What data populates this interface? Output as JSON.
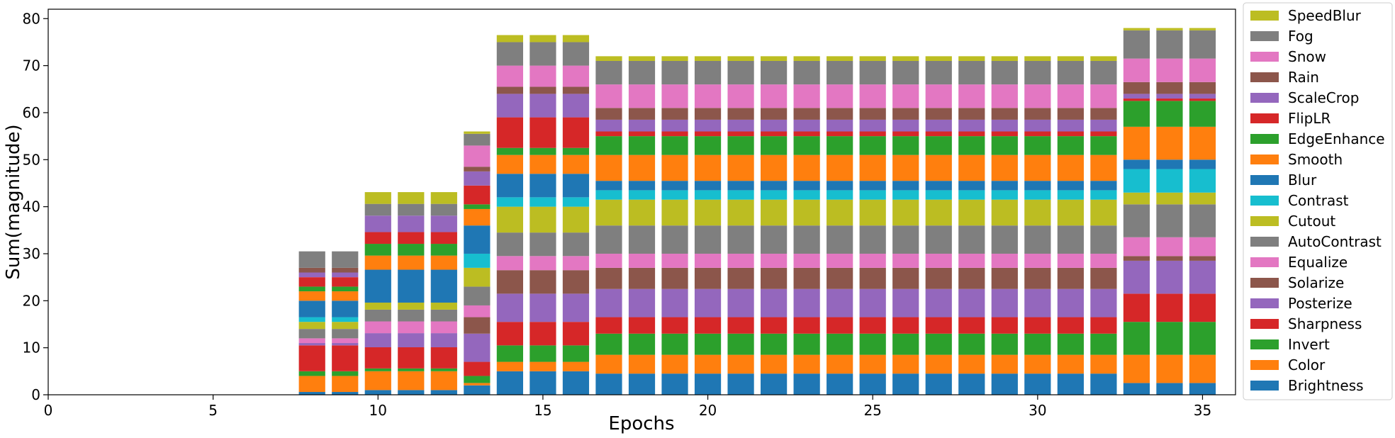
{
  "chart_data": {
    "type": "bar",
    "stacked": true,
    "title": "",
    "xlabel": "Epochs",
    "ylabel": "Sum(magnitude)",
    "xlim": [
      0,
      36
    ],
    "ylim": [
      0,
      82
    ],
    "x_ticks": [
      0,
      5,
      10,
      15,
      20,
      25,
      30,
      35
    ],
    "y_ticks": [
      0,
      10,
      20,
      30,
      40,
      50,
      60,
      70,
      80
    ],
    "grid": false,
    "legend_position": "right",
    "x": [
      8,
      9,
      10,
      11,
      12,
      13,
      14,
      15,
      16,
      17,
      18,
      19,
      20,
      21,
      22,
      23,
      24,
      25,
      26,
      27,
      28,
      29,
      30,
      31,
      32,
      33,
      34,
      35
    ],
    "series": [
      {
        "name": "Brightness",
        "color": "#1f77b4",
        "values": [
          0.6,
          0.6,
          1,
          1,
          1,
          2,
          5,
          5,
          5,
          4.5,
          4.5,
          4.5,
          4.5,
          4.5,
          4.5,
          4.5,
          4.5,
          4.5,
          4.5,
          4.5,
          4.5,
          4.5,
          4.5,
          4.5,
          4.5,
          2.5,
          2.5,
          2.5
        ]
      },
      {
        "name": "Color",
        "color": "#ff7f0e",
        "values": [
          3.4,
          3.4,
          4,
          4,
          4,
          0.5,
          2,
          2,
          2,
          4,
          4,
          4,
          4,
          4,
          4,
          4,
          4,
          4,
          4,
          4,
          4,
          4,
          4,
          4,
          4,
          6,
          6,
          6
        ]
      },
      {
        "name": "Invert",
        "color": "#2ca02c",
        "values": [
          1,
          1,
          0.6,
          0.6,
          0.6,
          1.5,
          3.5,
          3.5,
          3.5,
          4.5,
          4.5,
          4.5,
          4.5,
          4.5,
          4.5,
          4.5,
          4.5,
          4.5,
          4.5,
          4.5,
          4.5,
          4.5,
          4.5,
          4.5,
          4.5,
          7,
          7,
          7
        ]
      },
      {
        "name": "Sharpness",
        "color": "#d62728",
        "values": [
          5.5,
          5.5,
          4.5,
          4.5,
          4.5,
          3,
          5,
          5,
          5,
          3.5,
          3.5,
          3.5,
          3.5,
          3.5,
          3.5,
          3.5,
          3.5,
          3.5,
          3.5,
          3.5,
          3.5,
          3.5,
          3.5,
          3.5,
          3.5,
          6,
          6,
          6
        ]
      },
      {
        "name": "Posterize",
        "color": "#9467bd",
        "values": [
          0.5,
          0.5,
          3,
          3,
          3,
          6,
          6,
          6,
          6,
          6,
          6,
          6,
          6,
          6,
          6,
          6,
          6,
          6,
          6,
          6,
          6,
          6,
          6,
          6,
          6,
          7,
          7,
          7
        ]
      },
      {
        "name": "Solarize",
        "color": "#8c564b",
        "values": [
          0,
          0,
          0,
          0,
          0,
          3.5,
          5,
          5,
          5,
          4.5,
          4.5,
          4.5,
          4.5,
          4.5,
          4.5,
          4.5,
          4.5,
          4.5,
          4.5,
          4.5,
          4.5,
          4.5,
          4.5,
          4.5,
          4.5,
          1,
          1,
          1
        ]
      },
      {
        "name": "Equalize",
        "color": "#e377c2",
        "values": [
          1,
          1,
          2.5,
          2.5,
          2.5,
          2.5,
          3,
          3,
          3,
          3,
          3,
          3,
          3,
          3,
          3,
          3,
          3,
          3,
          3,
          3,
          3,
          3,
          3,
          3,
          3,
          4,
          4,
          4
        ]
      },
      {
        "name": "AutoContrast",
        "color": "#7f7f7f",
        "values": [
          2,
          2,
          2.5,
          2.5,
          2.5,
          4,
          5,
          5,
          5,
          6,
          6,
          6,
          6,
          6,
          6,
          6,
          6,
          6,
          6,
          6,
          6,
          6,
          6,
          6,
          6,
          7,
          7,
          7
        ]
      },
      {
        "name": "Cutout",
        "color": "#bcbd22",
        "values": [
          1.5,
          1.5,
          1.5,
          1.5,
          1.5,
          4,
          5.5,
          5.5,
          5.5,
          5.5,
          5.5,
          5.5,
          5.5,
          5.5,
          5.5,
          5.5,
          5.5,
          5.5,
          5.5,
          5.5,
          5.5,
          5.5,
          5.5,
          5.5,
          5.5,
          2.5,
          2.5,
          2.5
        ]
      },
      {
        "name": "Contrast",
        "color": "#17becf",
        "values": [
          1,
          1,
          0,
          0,
          0,
          3,
          2,
          2,
          2,
          2,
          2,
          2,
          2,
          2,
          2,
          2,
          2,
          2,
          2,
          2,
          2,
          2,
          2,
          2,
          2,
          5,
          5,
          5
        ]
      },
      {
        "name": "Blur",
        "color": "#1f77b4",
        "values": [
          3.5,
          3.5,
          7,
          7,
          7,
          6,
          5,
          5,
          5,
          2,
          2,
          2,
          2,
          2,
          2,
          2,
          2,
          2,
          2,
          2,
          2,
          2,
          2,
          2,
          2,
          2,
          2,
          2
        ]
      },
      {
        "name": "Smooth",
        "color": "#ff7f0e",
        "values": [
          2,
          2,
          3,
          3,
          3,
          3.5,
          4,
          4,
          4,
          5.5,
          5.5,
          5.5,
          5.5,
          5.5,
          5.5,
          5.5,
          5.5,
          5.5,
          5.5,
          5.5,
          5.5,
          5.5,
          5.5,
          5.5,
          5.5,
          7,
          7,
          7
        ]
      },
      {
        "name": "EdgeEnhance",
        "color": "#2ca02c",
        "values": [
          1,
          1,
          2.5,
          2.5,
          2.5,
          1,
          1.5,
          1.5,
          1.5,
          4,
          4,
          4,
          4,
          4,
          4,
          4,
          4,
          4,
          4,
          4,
          4,
          4,
          4,
          4,
          4,
          5.5,
          5.5,
          5.5
        ]
      },
      {
        "name": "FlipLR",
        "color": "#d62728",
        "values": [
          2,
          2,
          2.5,
          2.5,
          2.5,
          4,
          6.5,
          6.5,
          6.5,
          1,
          1,
          1,
          1,
          1,
          1,
          1,
          1,
          1,
          1,
          1,
          1,
          1,
          1,
          1,
          1,
          0.5,
          0.5,
          0.5
        ]
      },
      {
        "name": "ScaleCrop",
        "color": "#9467bd",
        "values": [
          1,
          1,
          3.5,
          3.5,
          3.5,
          3,
          5,
          5,
          5,
          2.5,
          2.5,
          2.5,
          2.5,
          2.5,
          2.5,
          2.5,
          2.5,
          2.5,
          2.5,
          2.5,
          2.5,
          2.5,
          2.5,
          2.5,
          2.5,
          1,
          1,
          1
        ]
      },
      {
        "name": "Rain",
        "color": "#8c564b",
        "values": [
          1,
          1,
          0,
          0,
          0,
          1,
          1.5,
          1.5,
          1.5,
          2.5,
          2.5,
          2.5,
          2.5,
          2.5,
          2.5,
          2.5,
          2.5,
          2.5,
          2.5,
          2.5,
          2.5,
          2.5,
          2.5,
          2.5,
          2.5,
          2.5,
          2.5,
          2.5
        ]
      },
      {
        "name": "Snow",
        "color": "#e377c2",
        "values": [
          0,
          0,
          0,
          0,
          0,
          4.5,
          4.5,
          4.5,
          4.5,
          5,
          5,
          5,
          5,
          5,
          5,
          5,
          5,
          5,
          5,
          5,
          5,
          5,
          5,
          5,
          5,
          5,
          5,
          5
        ]
      },
      {
        "name": "Fog",
        "color": "#7f7f7f",
        "values": [
          3.5,
          3.5,
          2.5,
          2.5,
          2.5,
          2.5,
          5,
          5,
          5,
          5,
          5,
          5,
          5,
          5,
          5,
          5,
          5,
          5,
          5,
          5,
          5,
          5,
          5,
          5,
          5,
          6,
          6,
          6
        ]
      },
      {
        "name": "SpeedBlur",
        "color": "#bcbd22",
        "values": [
          0,
          0,
          2.5,
          2.5,
          2.5,
          0.5,
          1.5,
          1.5,
          1.5,
          1,
          1,
          1,
          1,
          1,
          1,
          1,
          1,
          1,
          1,
          1,
          1,
          1,
          1,
          1,
          1,
          0.5,
          0.5,
          0.5
        ]
      }
    ]
  }
}
